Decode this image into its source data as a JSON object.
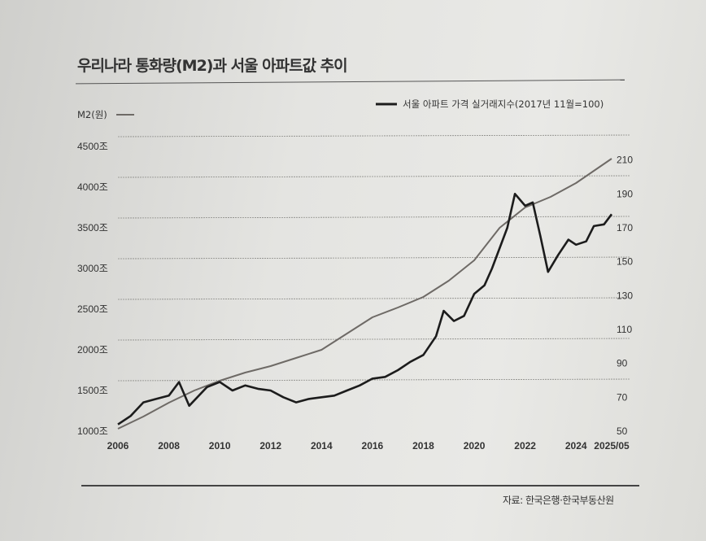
{
  "chart_data": {
    "type": "line",
    "title": "우리나라 통화량(M2)과 서울 아파트값 추이",
    "source": "자료: 한국은행·한국부동산원",
    "left_axis": {
      "label": "M2(원)",
      "ticks": [
        "1000조",
        "1500조",
        "2000조",
        "2500조",
        "3000조",
        "3500조",
        "4000조",
        "4500조"
      ],
      "tick_values": [
        1000,
        1500,
        2000,
        2500,
        3000,
        3500,
        4000,
        4500
      ],
      "range": [
        1000,
        4500
      ]
    },
    "right_axis": {
      "ticks": [
        "50",
        "70",
        "90",
        "110",
        "130",
        "150",
        "170",
        "190",
        "210"
      ],
      "tick_values": [
        50,
        70,
        90,
        110,
        130,
        150,
        170,
        190,
        210
      ],
      "range": [
        50,
        218
      ]
    },
    "x_axis": {
      "ticks": [
        "2006",
        "2008",
        "2010",
        "2012",
        "2014",
        "2016",
        "2018",
        "2020",
        "2022",
        "2024",
        "2025/05"
      ],
      "tick_values": [
        2006,
        2008,
        2010,
        2012,
        2014,
        2016,
        2018,
        2020,
        2022,
        2024,
        2025.4
      ],
      "range": [
        2006,
        2025.4
      ]
    },
    "grid": true,
    "legend_placement": "top",
    "series": [
      {
        "name": "M2(원)",
        "axis": "left",
        "color": "#6e6a66",
        "x": [
          2006,
          2007,
          2008,
          2009,
          2010,
          2011,
          2012,
          2013,
          2014,
          2015,
          2016,
          2017,
          2018,
          2019,
          2020,
          2021,
          2022,
          2023,
          2024,
          2025.4
        ],
        "y": [
          1030,
          1180,
          1350,
          1500,
          1620,
          1720,
          1800,
          1900,
          2000,
          2200,
          2400,
          2520,
          2650,
          2850,
          3100,
          3500,
          3750,
          3880,
          4050,
          4350
        ]
      },
      {
        "name": "서울 아파트 가격 실거래지수(2017년 11월=100)",
        "axis": "right",
        "color": "#1c1c1c",
        "x": [
          2006,
          2006.5,
          2007,
          2007.5,
          2008,
          2008.4,
          2008.8,
          2009.5,
          2010,
          2010.5,
          2011,
          2011.5,
          2012,
          2012.5,
          2013,
          2013.5,
          2014,
          2014.5,
          2015,
          2015.5,
          2016,
          2016.5,
          2017,
          2017.5,
          2018,
          2018.5,
          2018.8,
          2019.2,
          2019.6,
          2020,
          2020.4,
          2020.7,
          2021,
          2021.3,
          2021.6,
          2022,
          2022.3,
          2022.6,
          2022.9,
          2023.3,
          2023.7,
          2024,
          2024.4,
          2024.7,
          2025.1,
          2025.4
        ],
        "y": [
          54,
          59,
          67,
          69,
          71,
          79,
          65,
          76,
          79,
          74,
          77,
          75,
          74,
          70,
          67,
          69,
          70,
          71,
          74,
          77,
          81,
          82,
          86,
          91,
          95,
          106,
          121,
          115,
          118,
          131,
          136,
          146,
          158,
          170,
          190,
          183,
          185,
          165,
          144,
          154,
          163,
          160,
          162,
          171,
          172,
          178
        ]
      }
    ]
  }
}
